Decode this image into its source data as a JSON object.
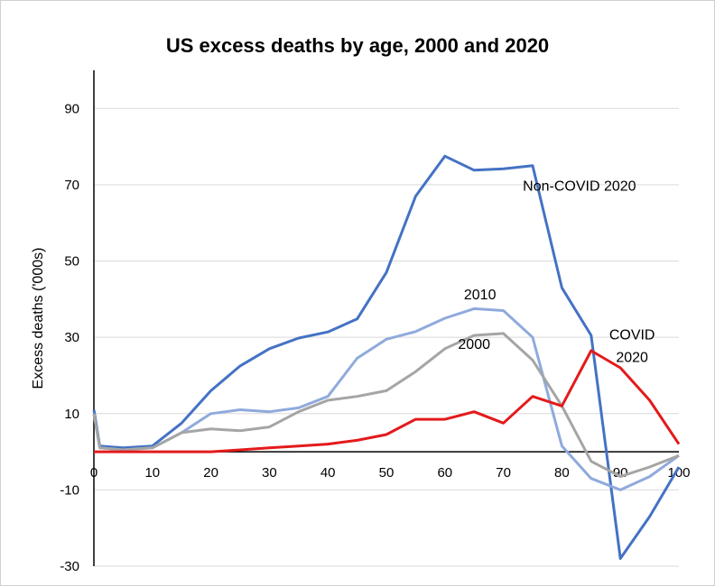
{
  "chart_data": {
    "type": "line",
    "title": "US excess deaths by age, 2000 and 2020",
    "xlabel": "",
    "ylabel": "Excess deaths ('000s)",
    "xlim": [
      0,
      100
    ],
    "ylim": [
      -30,
      100
    ],
    "x_ticks": [
      0,
      10,
      20,
      30,
      40,
      50,
      60,
      70,
      80,
      90,
      100
    ],
    "y_ticks": [
      -30,
      -10,
      10,
      30,
      50,
      70,
      90
    ],
    "grid": "horizontal",
    "legend": "none",
    "x": [
      0,
      1,
      5,
      10,
      15,
      20,
      25,
      30,
      35,
      40,
      45,
      50,
      55,
      60,
      65,
      70,
      75,
      80,
      85,
      90,
      95,
      100
    ],
    "series": [
      {
        "name": "Non-COVID 2020",
        "color": "#4472c4",
        "values": [
          11,
          1.5,
          1,
          1.5,
          7.5,
          16,
          22.5,
          27,
          29.8,
          31.4,
          34.8,
          47,
          67,
          77.5,
          73.8,
          74.2,
          75,
          43,
          30.5,
          -28,
          -17,
          -4
        ]
      },
      {
        "name": "2010",
        "color": "#8faadc",
        "values": [
          10,
          1,
          0.5,
          1,
          5,
          10,
          11,
          10.5,
          11.5,
          14.5,
          24.5,
          29.5,
          31.5,
          35,
          37.5,
          37,
          30,
          1.5,
          -7,
          -10,
          -6.5,
          -1
        ]
      },
      {
        "name": "2000",
        "color": "#a5a5a5",
        "values": [
          10,
          1,
          0.5,
          1,
          5,
          6,
          5.5,
          6.5,
          10.5,
          13.5,
          14.5,
          16,
          21,
          27,
          30.5,
          31,
          24,
          12,
          -2.5,
          -6.5,
          -4,
          -1
        ]
      },
      {
        "name": "COVID 2020",
        "color": "#e31a1c",
        "values": [
          0,
          0,
          0,
          0,
          0,
          0,
          0.5,
          1,
          1.5,
          2,
          3,
          4.5,
          8.5,
          8.5,
          10.5,
          7.5,
          14.5,
          12,
          26.5,
          22,
          13.5,
          2
        ]
      }
    ],
    "annotations": [
      {
        "text": "Non-COVID 2020",
        "x": 83,
        "y": 68.5
      },
      {
        "text": "2010",
        "x": 66,
        "y": 40
      },
      {
        "text": "2000",
        "x": 65,
        "y": 27
      },
      {
        "text": "COVID",
        "x": 92,
        "y": 29.5
      },
      {
        "text": "2020",
        "x": 92,
        "y": 23.5
      }
    ]
  }
}
